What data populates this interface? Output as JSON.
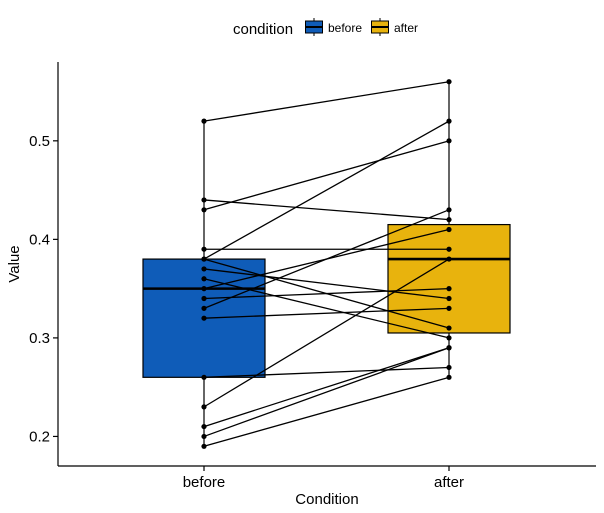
{
  "chart_data": {
    "type": "box",
    "xlabel": "Condition",
    "ylabel": "Value",
    "categories": [
      "before",
      "after"
    ],
    "colors": {
      "before": "#0F5CB8",
      "after": "#E8B30D"
    },
    "legend": {
      "title": "condition",
      "position": "top",
      "entries": [
        "before",
        "after"
      ]
    },
    "ylim": [
      0.17,
      0.58
    ],
    "yticks": [
      0.2,
      0.3,
      0.4,
      0.5
    ],
    "ytick_labels": [
      "0.2",
      "0.3",
      "0.4",
      "0.5"
    ],
    "boxes": [
      {
        "category": "before",
        "q1": 0.26,
        "median": 0.35,
        "q3": 0.38,
        "whisker_low": 0.19,
        "whisker_high": 0.52
      },
      {
        "category": "after",
        "q1": 0.305,
        "median": 0.38,
        "q3": 0.415,
        "whisker_low": 0.26,
        "whisker_high": 0.56
      }
    ],
    "pairs": [
      {
        "before": 0.52,
        "after": 0.56
      },
      {
        "before": 0.44,
        "after": 0.42
      },
      {
        "before": 0.43,
        "after": 0.5
      },
      {
        "before": 0.39,
        "after": 0.39
      },
      {
        "before": 0.38,
        "after": 0.52
      },
      {
        "before": 0.38,
        "after": 0.31
      },
      {
        "before": 0.37,
        "after": 0.34
      },
      {
        "before": 0.36,
        "after": 0.3
      },
      {
        "before": 0.35,
        "after": 0.41
      },
      {
        "before": 0.34,
        "after": 0.35
      },
      {
        "before": 0.33,
        "after": 0.43
      },
      {
        "before": 0.32,
        "after": 0.33
      },
      {
        "before": 0.26,
        "after": 0.27
      },
      {
        "before": 0.23,
        "after": 0.38
      },
      {
        "before": 0.21,
        "after": 0.29
      },
      {
        "before": 0.2,
        "after": 0.29
      },
      {
        "before": 0.19,
        "after": 0.26
      }
    ]
  }
}
